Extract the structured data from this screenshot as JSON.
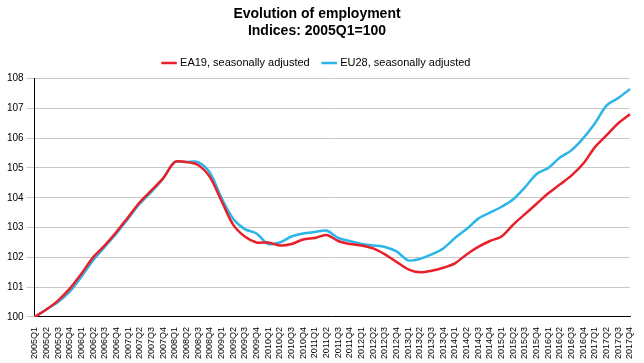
{
  "chart_data": {
    "type": "line",
    "title": "Evolution of employment",
    "subtitle": "Indices: 2005Q1=100",
    "categories": [
      "2005Q1",
      "2005Q2",
      "2005Q3",
      "2005Q4",
      "2006Q1",
      "2006Q2",
      "2006Q3",
      "2006Q4",
      "2007Q1",
      "2007Q2",
      "2007Q3",
      "2007Q4",
      "2008Q1",
      "2008Q2",
      "2008Q3",
      "2008Q4",
      "2009Q1",
      "2009Q2",
      "2009Q3",
      "2009Q4",
      "2010Q1",
      "2010Q2",
      "2010Q3",
      "2010Q4",
      "2011Q1",
      "2011Q2",
      "2011Q3",
      "2011Q4",
      "2012Q1",
      "2012Q2",
      "2012Q3",
      "2012Q4",
      "2013Q1",
      "2013Q2",
      "2013Q3",
      "2013Q4",
      "2014Q1",
      "2014Q2",
      "2014Q3",
      "2014Q4",
      "2015Q1",
      "2015Q2",
      "2015Q3",
      "2015Q4",
      "2016Q1",
      "2016Q2",
      "2016Q3",
      "2016Q4",
      "2017Q1",
      "2017Q2",
      "2017Q3",
      "2017Q4"
    ],
    "series": [
      {
        "name": "EA19, seasonally adjusted",
        "color": "#e8202a",
        "marker": "none",
        "line_style": "solid",
        "values": [
          100.0,
          100.25,
          100.55,
          100.95,
          101.45,
          102.0,
          102.4,
          102.85,
          103.35,
          103.85,
          104.25,
          104.65,
          105.2,
          105.2,
          105.1,
          104.7,
          103.9,
          103.1,
          102.7,
          102.5,
          102.5,
          102.4,
          102.45,
          102.6,
          102.65,
          102.75,
          102.55,
          102.45,
          102.4,
          102.3,
          102.1,
          101.85,
          101.6,
          101.5,
          101.55,
          101.65,
          101.8,
          102.1,
          102.35,
          102.55,
          102.7,
          103.1,
          103.45,
          103.8,
          104.15,
          104.45,
          104.75,
          105.15,
          105.7,
          106.1,
          106.5,
          106.8
        ]
      },
      {
        "name": "EU28, seasonally adjusted",
        "color": "#2cb5e8",
        "marker": "none",
        "line_style": "solid",
        "values": [
          100.0,
          100.25,
          100.5,
          100.85,
          101.35,
          101.9,
          102.35,
          102.8,
          103.3,
          103.8,
          104.2,
          104.65,
          105.2,
          105.2,
          105.2,
          104.85,
          104.0,
          103.3,
          102.95,
          102.8,
          102.45,
          102.5,
          102.7,
          102.8,
          102.85,
          102.9,
          102.65,
          102.55,
          102.45,
          102.4,
          102.35,
          102.2,
          101.9,
          101.95,
          102.1,
          102.3,
          102.65,
          102.95,
          103.3,
          103.5,
          103.7,
          103.95,
          104.35,
          104.8,
          105.0,
          105.35,
          105.6,
          106.0,
          106.5,
          107.1,
          107.35,
          107.65
        ]
      }
    ],
    "ylim": [
      100,
      108
    ],
    "yticks": [
      100,
      101,
      102,
      103,
      104,
      105,
      106,
      107,
      108
    ],
    "grid": true,
    "legend": "top"
  }
}
